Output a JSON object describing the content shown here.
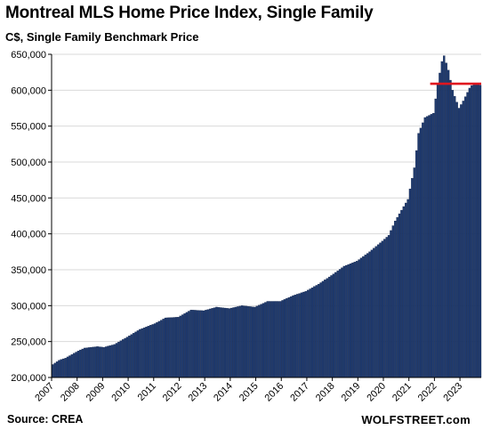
{
  "title": "Montreal MLS Home Price Index, Single Family",
  "subtitle": "C$, Single Family Benchmark Price",
  "source": "Source: CREA",
  "brand": "WOLFSTREET.com",
  "colors": {
    "bar": "#1f3a6e",
    "bar_edge": "#0d1f44",
    "reference_line": "#e0161f",
    "grid": "#d9d9d9"
  },
  "chart_data": {
    "type": "bar",
    "title": "Montreal MLS Home Price Index, Single Family",
    "subtitle": "C$, Single Family Benchmark Price",
    "xlabel": "",
    "ylabel": "",
    "ylim": [
      200000,
      650000
    ],
    "yticks": [
      200000,
      250000,
      300000,
      350000,
      400000,
      450000,
      500000,
      550000,
      600000,
      650000
    ],
    "ytick_labels": [
      "200,000",
      "250,000",
      "300,000",
      "350,000",
      "400,000",
      "450,000",
      "500,000",
      "550,000",
      "600,000",
      "650,000"
    ],
    "xtick_labels": [
      "2007",
      "2008",
      "2009",
      "2010",
      "2011",
      "2012",
      "2013",
      "2014",
      "2015",
      "2016",
      "2017",
      "2018",
      "2019",
      "2020",
      "2021",
      "2022",
      "2023"
    ],
    "grid": "horizontal",
    "frequency": "monthly",
    "start": "2007-01",
    "end": "2023-10",
    "anchors": [
      [
        "2007-01",
        218000
      ],
      [
        "2007-04",
        224000
      ],
      [
        "2007-07",
        227000
      ],
      [
        "2008-01",
        237000
      ],
      [
        "2008-04",
        241000
      ],
      [
        "2008-10",
        243000
      ],
      [
        "2009-01",
        242000
      ],
      [
        "2009-06",
        246000
      ],
      [
        "2010-01",
        258000
      ],
      [
        "2010-06",
        267000
      ],
      [
        "2011-01",
        275000
      ],
      [
        "2011-06",
        283000
      ],
      [
        "2011-12",
        284000
      ],
      [
        "2012-06",
        294000
      ],
      [
        "2012-12",
        293000
      ],
      [
        "2013-06",
        298000
      ],
      [
        "2013-12",
        296000
      ],
      [
        "2014-06",
        300000
      ],
      [
        "2014-12",
        298000
      ],
      [
        "2015-06",
        306000
      ],
      [
        "2015-12",
        306000
      ],
      [
        "2016-06",
        314000
      ],
      [
        "2016-12",
        320000
      ],
      [
        "2017-06",
        330000
      ],
      [
        "2017-12",
        342000
      ],
      [
        "2018-06",
        355000
      ],
      [
        "2018-12",
        362000
      ],
      [
        "2019-06",
        375000
      ],
      [
        "2019-12",
        390000
      ],
      [
        "2020-03",
        398000
      ],
      [
        "2020-06",
        418000
      ],
      [
        "2020-12",
        448000
      ],
      [
        "2021-03",
        492000
      ],
      [
        "2021-05",
        540000
      ],
      [
        "2021-08",
        562000
      ],
      [
        "2021-12",
        568000
      ],
      [
        "2022-02",
        608000
      ],
      [
        "2022-04",
        640000
      ],
      [
        "2022-05",
        648000
      ],
      [
        "2022-07",
        628000
      ],
      [
        "2022-09",
        600000
      ],
      [
        "2022-12",
        575000
      ],
      [
        "2023-02",
        585000
      ],
      [
        "2023-05",
        603000
      ],
      [
        "2023-07",
        610000
      ],
      [
        "2023-10",
        607000
      ]
    ],
    "reference_line": {
      "value": 609000,
      "from": "2021-11",
      "to": "2023-10"
    }
  }
}
